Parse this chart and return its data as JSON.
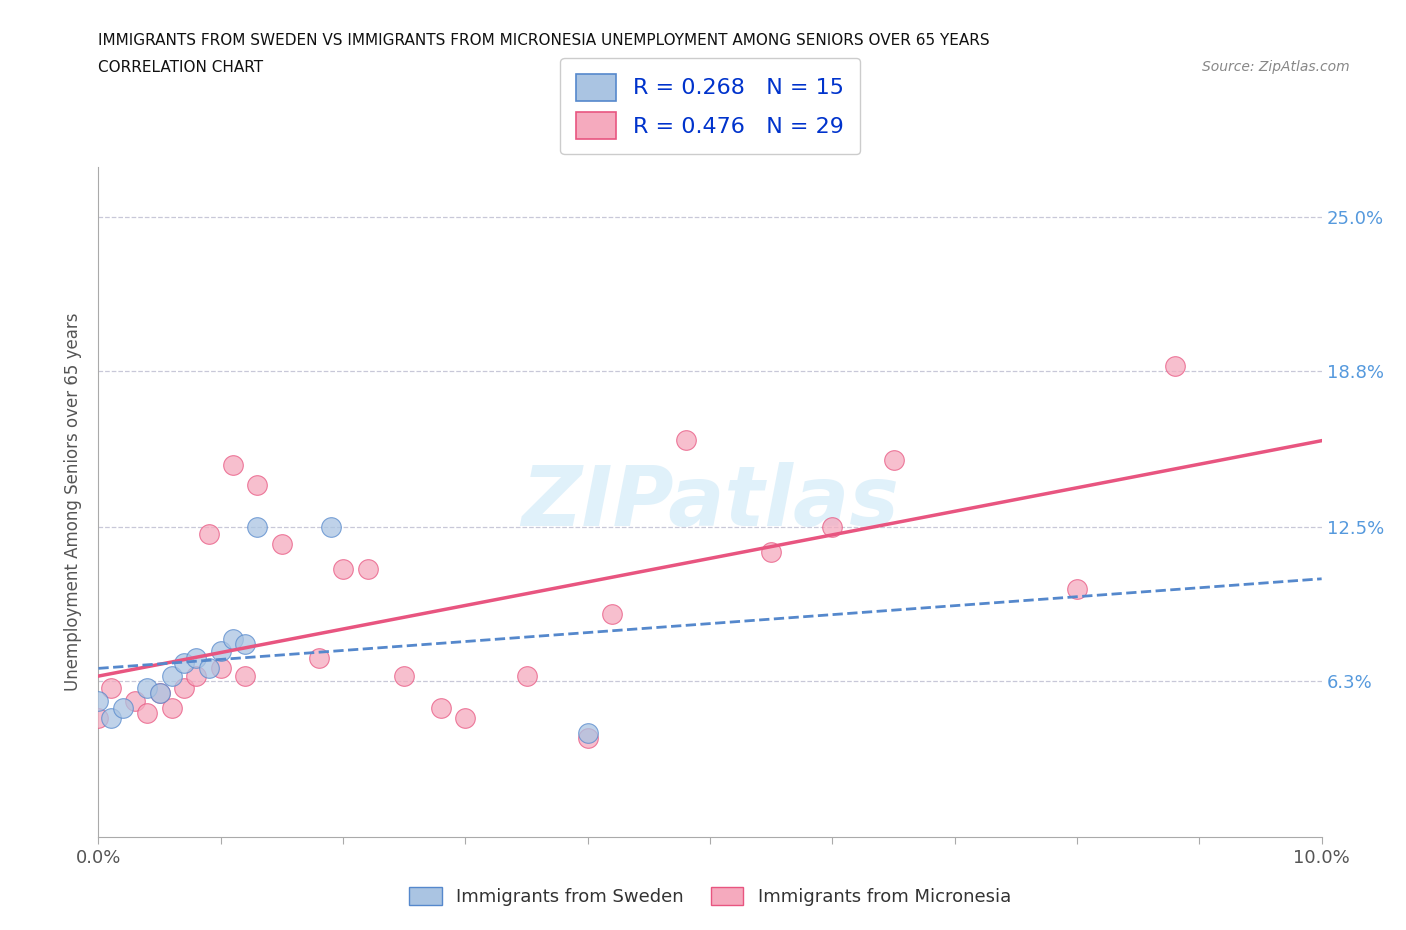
{
  "title_line1": "IMMIGRANTS FROM SWEDEN VS IMMIGRANTS FROM MICRONESIA UNEMPLOYMENT AMONG SENIORS OVER 65 YEARS",
  "title_line2": "CORRELATION CHART",
  "source_text": "Source: ZipAtlas.com",
  "ylabel": "Unemployment Among Seniors over 65 years",
  "xlim": [
    0.0,
    0.1
  ],
  "ylim": [
    0.0,
    0.27
  ],
  "ytick_labels_right": [
    "6.3%",
    "12.5%",
    "18.8%",
    "25.0%"
  ],
  "ytick_vals_right": [
    0.063,
    0.125,
    0.188,
    0.25
  ],
  "sweden_color": "#aac4e2",
  "micronesia_color": "#f5aabe",
  "sweden_line_color": "#5588cc",
  "micronesia_line_color": "#e85580",
  "r_sweden": 0.268,
  "n_sweden": 15,
  "r_micronesia": 0.476,
  "n_micronesia": 29,
  "watermark": "ZIPatlas",
  "background_color": "#ffffff",
  "grid_color": "#c8c8d8",
  "sweden_scatter_x": [
    0.0,
    0.001,
    0.002,
    0.004,
    0.005,
    0.006,
    0.007,
    0.008,
    0.009,
    0.01,
    0.011,
    0.012,
    0.013,
    0.019,
    0.04
  ],
  "sweden_scatter_y": [
    0.055,
    0.048,
    0.052,
    0.06,
    0.058,
    0.065,
    0.07,
    0.072,
    0.068,
    0.075,
    0.08,
    0.078,
    0.125,
    0.125,
    0.042
  ],
  "micronesia_scatter_x": [
    0.0,
    0.001,
    0.003,
    0.004,
    0.005,
    0.006,
    0.007,
    0.008,
    0.009,
    0.01,
    0.011,
    0.012,
    0.013,
    0.015,
    0.018,
    0.02,
    0.022,
    0.025,
    0.028,
    0.03,
    0.035,
    0.04,
    0.042,
    0.048,
    0.055,
    0.06,
    0.065,
    0.08,
    0.088
  ],
  "micronesia_scatter_y": [
    0.048,
    0.06,
    0.055,
    0.05,
    0.058,
    0.052,
    0.06,
    0.065,
    0.122,
    0.068,
    0.15,
    0.065,
    0.142,
    0.118,
    0.072,
    0.108,
    0.108,
    0.065,
    0.052,
    0.048,
    0.065,
    0.04,
    0.09,
    0.16,
    0.115,
    0.125,
    0.152,
    0.1,
    0.19
  ]
}
